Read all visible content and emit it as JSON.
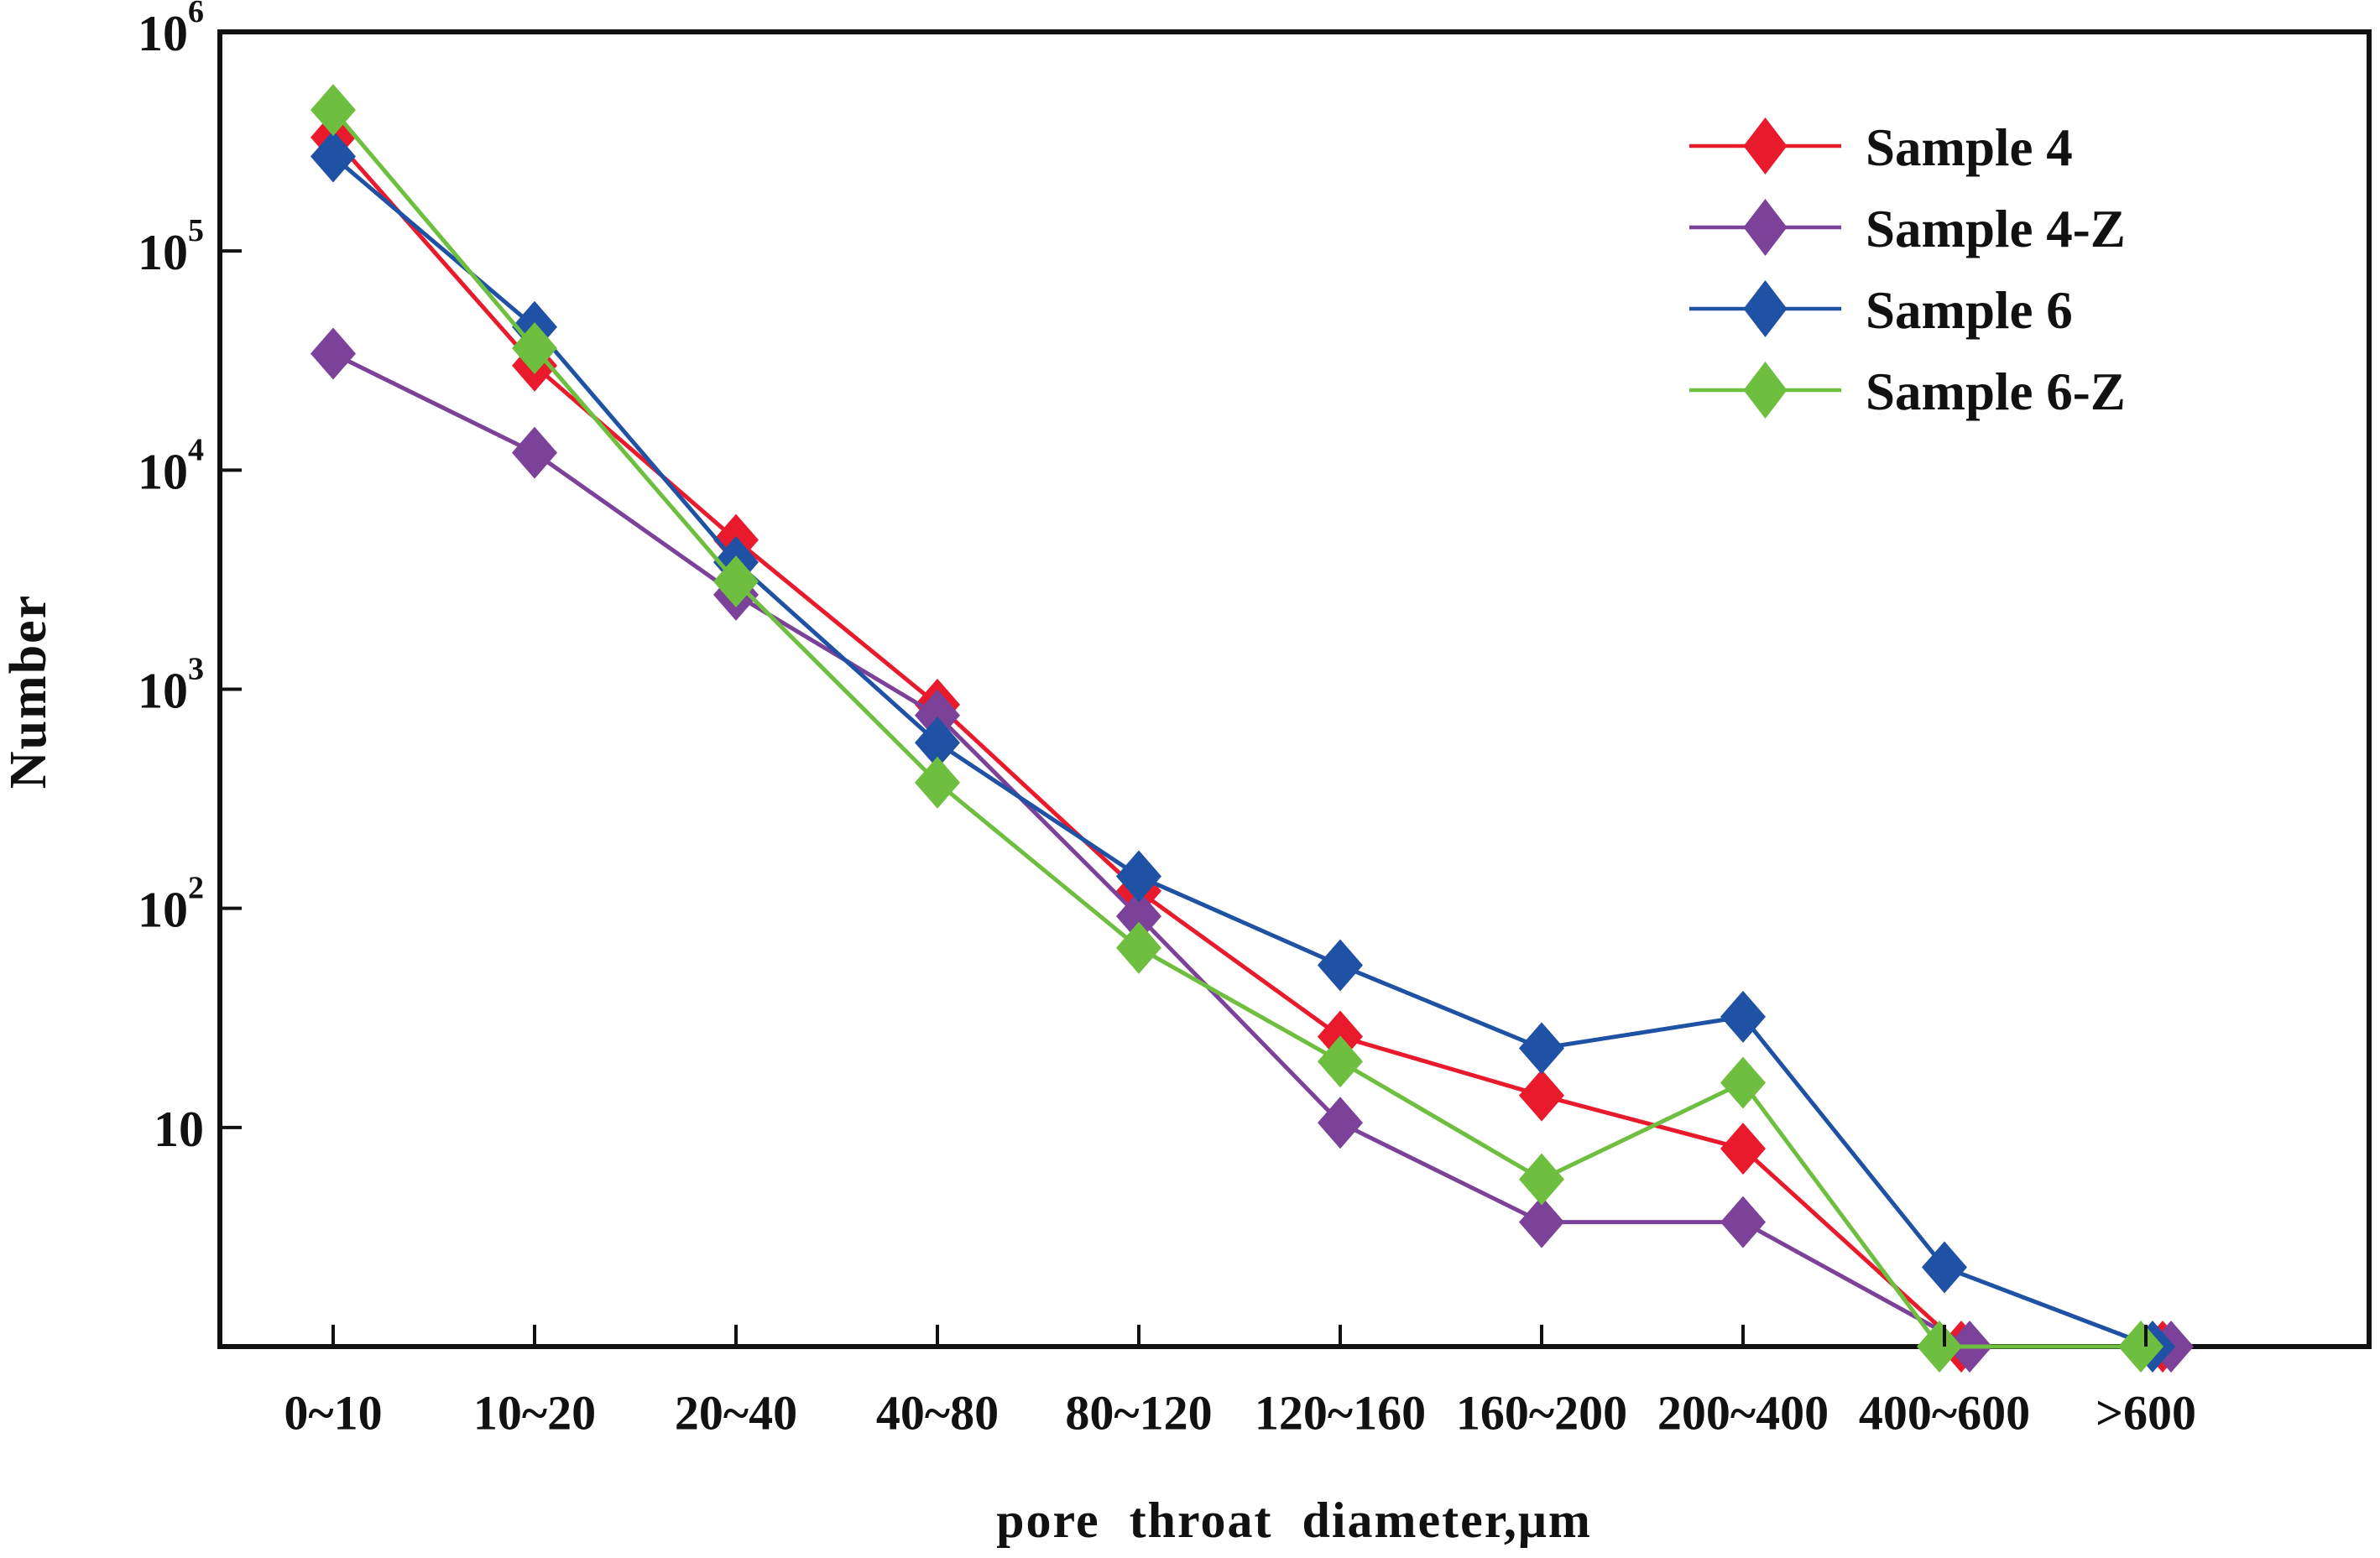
{
  "chart_data": {
    "type": "line",
    "title": "",
    "xlabel": "pore throat diameter,μm",
    "ylabel": "Number",
    "y_scale": "log",
    "ylim": [
      1,
      1000000
    ],
    "y_tick_labels": [
      "10^6",
      "10^5",
      "10^4",
      "10^3",
      "10^2",
      "10"
    ],
    "grid": false,
    "legend_position": "upper right",
    "marker": "diamond",
    "categories": [
      "0~10",
      "10~20",
      "20~40",
      "40~80",
      "80~120",
      "120~160",
      "160~200",
      "200~400",
      "400~600",
      ">600"
    ],
    "series": [
      {
        "name": "Sample 4",
        "color": "#e81a2c",
        "values": [
          330000,
          30000,
          4800,
          850,
          120,
          26,
          14,
          8,
          1,
          1
        ]
      },
      {
        "name": "Sample 4-Z",
        "color": "#7c4198",
        "values": [
          34000,
          12000,
          2700,
          760,
          92,
          10.5,
          3.7,
          3.7,
          1,
          1
        ]
      },
      {
        "name": "Sample 6",
        "color": "#1f51a4",
        "values": [
          270000,
          45000,
          3800,
          570,
          140,
          55,
          23,
          32,
          2.3,
          1
        ]
      },
      {
        "name": "Sample 6-Z",
        "color": "#6ebe3f",
        "values": [
          440000,
          36000,
          3100,
          375,
          66,
          20,
          5.8,
          16,
          1,
          1
        ]
      }
    ]
  }
}
